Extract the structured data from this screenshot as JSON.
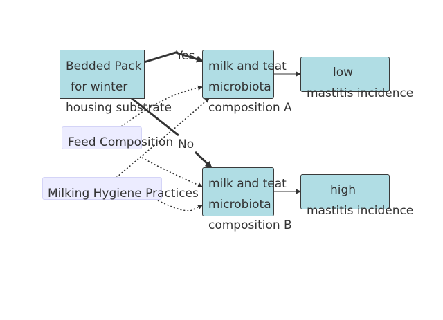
{
  "diagram": {
    "nodes": {
      "bedded_pack": {
        "lines": [
          "Bedded Pack",
          "for winter",
          "housing substrate"
        ]
      },
      "feed": {
        "label": "Feed Composition"
      },
      "milking": {
        "label": "Milking Hygiene Practices"
      },
      "micro_a": {
        "lines": [
          "milk and teat",
          "microbiota",
          "composition A"
        ]
      },
      "micro_b": {
        "lines": [
          "milk and teat",
          "microbiota",
          "composition B"
        ]
      },
      "low": {
        "lines": [
          "low",
          "mastitis incidence"
        ]
      },
      "high": {
        "lines": [
          "high",
          "mastitis incidence"
        ]
      }
    },
    "edge_labels": {
      "yes": "Yes",
      "no": "No"
    },
    "colors": {
      "teal_fill": "#b0dde4",
      "lavender_fill": "#ececff",
      "stroke": "#333333"
    }
  }
}
